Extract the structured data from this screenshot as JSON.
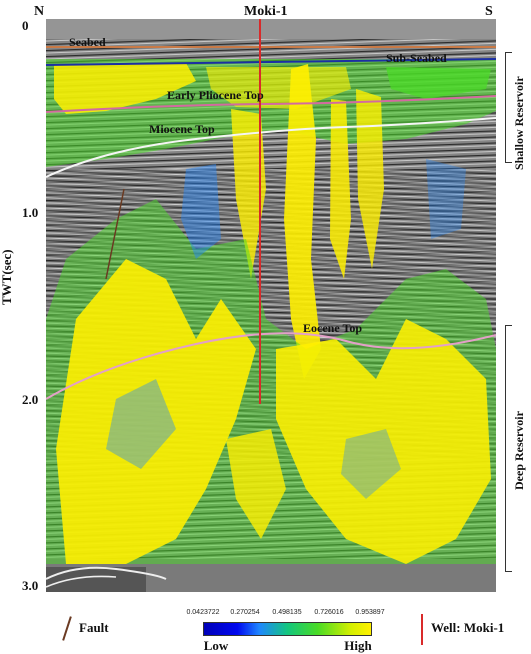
{
  "figure": {
    "compass_left": "N",
    "compass_right": "S",
    "well_title": "Moki-1",
    "axis": {
      "title": "TWT(sec)",
      "ticks": [
        "0",
        "1.0",
        "2.0",
        "3.0"
      ]
    },
    "horizons": {
      "seabed": "Seabed",
      "sub_seabed": "Sub-Seabed",
      "early_pliocene": "Early Pliocene Top",
      "miocene": "Miocene Top",
      "eocene": "Eocene Top"
    },
    "reservoirs": {
      "shallow": "Shallow Reservoir",
      "deep": "Deep Reservoir"
    },
    "legend": {
      "fault": "Fault",
      "well": "Well: Moki-1",
      "colorbar_ticks": [
        "0.0423722",
        "0.270254",
        "0.498135",
        "0.726016",
        "0.953897"
      ],
      "low": "Low",
      "high": "High"
    },
    "colors": {
      "seabed_line": "#c87a47",
      "sub_seabed_line": "#1c2fa3",
      "early_pliocene_line": "#d36aa0",
      "miocene_line": "#f5f5f5",
      "eocene_line": "#e3a0c8",
      "well_line": "#d92a2a",
      "fault_line": "#6b3b23",
      "attribute_high": "#fff000",
      "attribute_mid": "#49db26",
      "attribute_low": "#1f86ff"
    }
  }
}
